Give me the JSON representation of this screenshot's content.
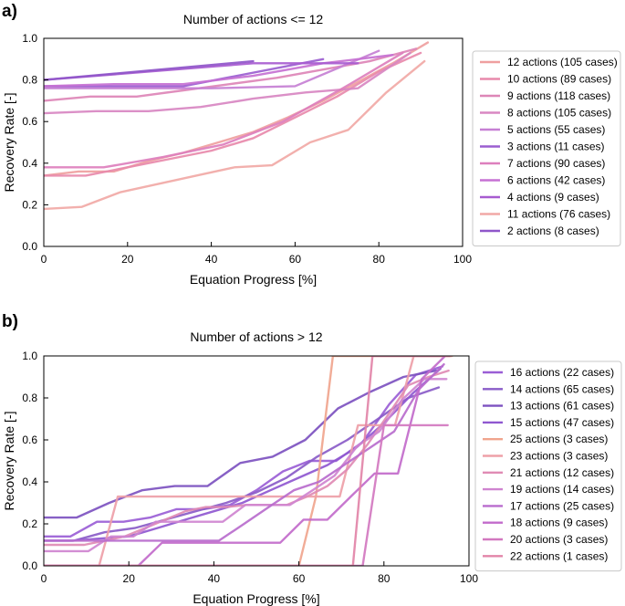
{
  "chart_data": [
    {
      "type": "line",
      "panel_label": "a)",
      "title": "Number of actions <= 12",
      "xlabel": "Equation Progress [%]",
      "ylabel": "Recovery Rate [-]",
      "xlim": [
        0,
        100
      ],
      "ylim": [
        0,
        1.0
      ],
      "xticks": [
        "0",
        "20",
        "40",
        "60",
        "80",
        "100"
      ],
      "yticks": [
        "0.0",
        "0.2",
        "0.4",
        "0.6",
        "0.8",
        "1.0"
      ],
      "legend_position": "right",
      "series": [
        {
          "name": "12 actions (105 cases)",
          "color": "#ef9f9f",
          "x": [
            0,
            8.3,
            16.7,
            25,
            33.3,
            41.7,
            50,
            58.3,
            66.7,
            75,
            83.3,
            91.7
          ],
          "y": [
            0.34,
            0.36,
            0.36,
            0.41,
            0.45,
            0.5,
            0.55,
            0.62,
            0.7,
            0.79,
            0.88,
            0.98
          ]
        },
        {
          "name": "10 actions (89 cases)",
          "color": "#e88aab",
          "x": [
            0,
            10,
            20,
            30,
            40,
            50,
            60,
            70,
            80,
            90
          ],
          "y": [
            0.34,
            0.34,
            0.38,
            0.42,
            0.46,
            0.52,
            0.62,
            0.72,
            0.84,
            0.93
          ]
        },
        {
          "name": "9 actions (118 cases)",
          "color": "#dd86b7",
          "x": [
            0,
            11.1,
            22.2,
            33.3,
            44.4,
            55.6,
            66.7,
            77.8,
            88.9
          ],
          "y": [
            0.7,
            0.72,
            0.72,
            0.75,
            0.78,
            0.81,
            0.85,
            0.89,
            0.95
          ]
        },
        {
          "name": "8 actions (105 cases)",
          "color": "#d887c2",
          "x": [
            0,
            12.5,
            25,
            37.5,
            50,
            62.5,
            75,
            87.5
          ],
          "y": [
            0.64,
            0.65,
            0.65,
            0.67,
            0.71,
            0.74,
            0.76,
            0.93
          ]
        },
        {
          "name": "5 actions (55 cases)",
          "color": "#c680d4",
          "x": [
            0,
            20,
            40,
            60,
            80
          ],
          "y": [
            0.76,
            0.76,
            0.76,
            0.77,
            0.94
          ]
        },
        {
          "name": "3 actions (11 cases)",
          "color": "#9b5ed0",
          "x": [
            0,
            33.3,
            66.7
          ],
          "y": [
            0.77,
            0.77,
            0.9
          ]
        },
        {
          "name": "7 actions (90 cases)",
          "color": "#dd7fbd",
          "x": [
            0,
            14.3,
            28.6,
            42.9,
            57.1,
            71.4,
            85.7
          ],
          "y": [
            0.38,
            0.38,
            0.43,
            0.49,
            0.6,
            0.76,
            0.93
          ]
        },
        {
          "name": "6 actions (42 cases)",
          "color": "#c671d3",
          "x": [
            0,
            16.7,
            33.3,
            50,
            66.7,
            83.3
          ],
          "y": [
            0.77,
            0.78,
            0.78,
            0.82,
            0.88,
            0.92
          ]
        },
        {
          "name": "4 actions (9 cases)",
          "color": "#a75bd0",
          "x": [
            0,
            25,
            50,
            75
          ],
          "y": [
            0.8,
            0.84,
            0.88,
            0.88
          ]
        },
        {
          "name": "11 actions (76 cases)",
          "color": "#f1a9a6",
          "x": [
            0,
            9.1,
            18.2,
            27.3,
            36.4,
            45.5,
            54.5,
            63.6,
            72.7,
            81.8,
            90.9
          ],
          "y": [
            0.18,
            0.19,
            0.26,
            0.3,
            0.34,
            0.38,
            0.39,
            0.5,
            0.56,
            0.74,
            0.89
          ]
        },
        {
          "name": "2 actions (8 cases)",
          "color": "#8f56c9",
          "x": [
            0,
            50
          ],
          "y": [
            0.8,
            0.89
          ]
        }
      ]
    },
    {
      "type": "line",
      "panel_label": "b)",
      "title": "Number of actions > 12",
      "xlabel": "Equation Progress [%]",
      "ylabel": "Recovery Rate [-]",
      "xlim": [
        0,
        100
      ],
      "ylim": [
        0,
        1.0
      ],
      "xticks": [
        "0",
        "20",
        "40",
        "60",
        "80",
        "100"
      ],
      "yticks": [
        "0.0",
        "0.2",
        "0.4",
        "0.6",
        "0.8",
        "1.0"
      ],
      "legend_position": "right",
      "series": [
        {
          "name": "16 actions (22 cases)",
          "color": "#9a5ed6",
          "x": [
            0,
            6.25,
            12.5,
            18.75,
            25,
            31.25,
            37.5,
            43.75,
            50,
            56.25,
            62.5,
            68.75,
            75,
            81.25,
            87.5,
            93.75
          ],
          "y": [
            0.14,
            0.14,
            0.21,
            0.21,
            0.23,
            0.27,
            0.27,
            0.29,
            0.36,
            0.45,
            0.5,
            0.5,
            0.59,
            0.77,
            0.91,
            0.95
          ]
        },
        {
          "name": "14 actions (65 cases)",
          "color": "#8a5cc8",
          "x": [
            0,
            7.1,
            14.3,
            21.4,
            28.6,
            35.7,
            42.9,
            50,
            57.1,
            64.3,
            71.4,
            78.6,
            85.7,
            92.9
          ],
          "y": [
            0.12,
            0.12,
            0.16,
            0.18,
            0.22,
            0.26,
            0.3,
            0.35,
            0.42,
            0.52,
            0.6,
            0.7,
            0.8,
            0.85
          ]
        },
        {
          "name": "13 actions (61 cases)",
          "color": "#7d52c0",
          "x": [
            0,
            7.7,
            15.4,
            23.1,
            30.8,
            38.5,
            46.2,
            53.8,
            61.5,
            69.2,
            76.9,
            84.6,
            92.3
          ],
          "y": [
            0.23,
            0.23,
            0.3,
            0.36,
            0.38,
            0.38,
            0.49,
            0.52,
            0.6,
            0.75,
            0.83,
            0.9,
            0.93
          ]
        },
        {
          "name": "15 actions (47 cases)",
          "color": "#8f58d0",
          "x": [
            0,
            6.7,
            13.3,
            20,
            26.7,
            33.3,
            40,
            46.7,
            53.3,
            60,
            66.7,
            73.3,
            80,
            86.7,
            93.3
          ],
          "y": [
            0.12,
            0.12,
            0.13,
            0.14,
            0.18,
            0.22,
            0.26,
            0.3,
            0.36,
            0.42,
            0.48,
            0.56,
            0.68,
            0.82,
            0.94
          ]
        },
        {
          "name": "25 actions (3 cases)",
          "color": "#f0a58e",
          "x": [
            0,
            4,
            8,
            12,
            16,
            20,
            24,
            28,
            32,
            36,
            40,
            44,
            48,
            52,
            56,
            60,
            64,
            68,
            72,
            76,
            80,
            84,
            88,
            92,
            96
          ],
          "y": [
            0,
            0,
            0,
            0,
            0,
            0,
            0,
            0,
            0,
            0,
            0,
            0,
            0,
            0,
            0,
            0,
            0.33,
            1.0,
            1.0,
            1.0,
            1.0,
            1.0,
            1.0,
            1.0,
            1.0
          ]
        },
        {
          "name": "23 actions (3 cases)",
          "color": "#eea0a8",
          "x": [
            0,
            4.3,
            8.7,
            13,
            17.4,
            21.7,
            26.1,
            30.4,
            34.8,
            39.1,
            43.5,
            47.8,
            52.2,
            56.5,
            60.9,
            65.2,
            69.6,
            73.9,
            78.3,
            82.6,
            87,
            91.3,
            95.7
          ],
          "y": [
            0,
            0,
            0,
            0,
            0.33,
            0.33,
            0.33,
            0.33,
            0.33,
            0.33,
            0.33,
            0.33,
            0.33,
            0.33,
            0.33,
            0.33,
            0.33,
            0.67,
            0.67,
            0.67,
            1.0,
            1.0,
            1.0
          ]
        },
        {
          "name": "21 actions (12 cases)",
          "color": "#e08bb4",
          "x": [
            0,
            4.8,
            9.5,
            14.3,
            19,
            23.8,
            28.6,
            33.3,
            38.1,
            42.9,
            47.6,
            52.4,
            57.1,
            61.9,
            66.7,
            71.4,
            76.2,
            81,
            85.7,
            90.5,
            95.2
          ],
          "y": [
            0.1,
            0.1,
            0.1,
            0.12,
            0.14,
            0.18,
            0.22,
            0.26,
            0.28,
            0.28,
            0.29,
            0.29,
            0.29,
            0.33,
            0.38,
            0.46,
            0.58,
            0.72,
            0.86,
            0.9,
            0.93
          ]
        },
        {
          "name": "19 actions (14 cases)",
          "color": "#cf84d0",
          "x": [
            0,
            5.3,
            10.5,
            15.8,
            21.1,
            26.3,
            31.6,
            36.8,
            42.1,
            47.4,
            52.6,
            57.9,
            63.2,
            68.4,
            73.7,
            78.9,
            84.2,
            89.5,
            94.7
          ],
          "y": [
            0.07,
            0.07,
            0.07,
            0.14,
            0.14,
            0.21,
            0.21,
            0.21,
            0.21,
            0.29,
            0.29,
            0.29,
            0.36,
            0.43,
            0.57,
            0.64,
            0.79,
            0.89,
            0.89
          ]
        },
        {
          "name": "17 actions (25 cases)",
          "color": "#b96ccd",
          "x": [
            0,
            5.9,
            11.8,
            17.6,
            23.5,
            29.4,
            35.3,
            41.2,
            47.1,
            52.9,
            58.8,
            64.7,
            70.6,
            76.5,
            82.4,
            88.2,
            94.1
          ],
          "y": [
            0.12,
            0.12,
            0.12,
            0.12,
            0.12,
            0.12,
            0.12,
            0.12,
            0.2,
            0.28,
            0.36,
            0.4,
            0.48,
            0.56,
            0.64,
            0.84,
            0.96
          ]
        },
        {
          "name": "18 actions (9 cases)",
          "color": "#c26bcb",
          "x": [
            0,
            5.6,
            11.1,
            16.7,
            22.2,
            27.8,
            33.3,
            38.9,
            44.4,
            50,
            55.6,
            61.1,
            66.7,
            72.2,
            77.8,
            83.3,
            88.9,
            94.4
          ],
          "y": [
            0,
            0,
            0,
            0,
            0,
            0.11,
            0.11,
            0.11,
            0.11,
            0.11,
            0.11,
            0.22,
            0.22,
            0.33,
            0.44,
            0.44,
            0.89,
            1.0
          ]
        },
        {
          "name": "20 actions (3 cases)",
          "color": "#d278c0",
          "x": [
            0,
            5,
            10,
            15,
            20,
            25,
            30,
            35,
            40,
            45,
            50,
            55,
            60,
            65,
            70,
            75,
            80,
            85,
            90,
            95
          ],
          "y": [
            0,
            0,
            0,
            0,
            0,
            0,
            0,
            0,
            0,
            0,
            0,
            0,
            0,
            0,
            0,
            0,
            0.67,
            0.67,
            0.67,
            0.67
          ]
        },
        {
          "name": "22 actions (1 cases)",
          "color": "#e284a8",
          "x": [
            0,
            4.5,
            9.1,
            13.6,
            18.2,
            22.7,
            27.3,
            31.8,
            36.4,
            40.9,
            45.5,
            50,
            54.5,
            59.1,
            63.6,
            68.2,
            72.7,
            77.3,
            81.8,
            86.4,
            90.9,
            95.5
          ],
          "y": [
            0,
            0,
            0,
            0,
            0,
            0,
            0,
            0,
            0,
            0,
            0,
            0,
            0,
            0,
            0,
            0,
            0,
            1.0,
            1.0,
            1.0,
            1.0,
            1.0
          ]
        }
      ]
    }
  ]
}
